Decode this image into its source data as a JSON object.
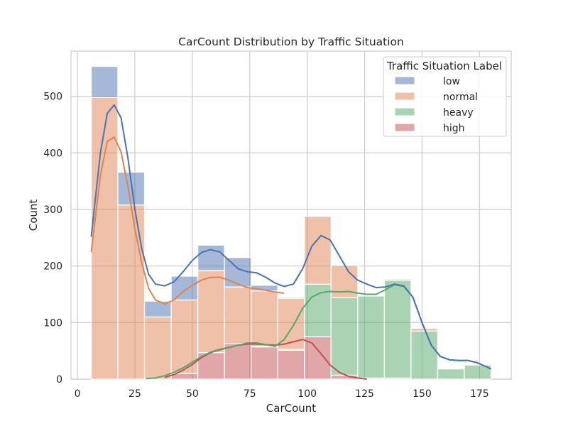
{
  "chart_data": {
    "type": "histogram",
    "title": "CarCount Distribution by Traffic Situation",
    "xlabel": "CarCount",
    "ylabel": "Count",
    "xlim": [
      -2.8,
      188.8
    ],
    "ylim": [
      0,
      580
    ],
    "xticks": [
      0,
      25,
      50,
      75,
      100,
      125,
      150,
      175
    ],
    "yticks": [
      0,
      100,
      200,
      300,
      400,
      500
    ],
    "grid": true,
    "stacked": true,
    "legend": {
      "title": "Traffic Situation Label",
      "placement": "top-right"
    },
    "bins": [
      6,
      17.6,
      29.2,
      40.8,
      52.4,
      64,
      75.6,
      87.2,
      98.8,
      110.4,
      122,
      133.6,
      145.2,
      156.8,
      168.4,
      180
    ],
    "series": [
      {
        "name": "low",
        "color": "#4c72b0",
        "values": [
          55,
          58,
          28,
          42,
          45,
          52,
          10,
          2,
          0,
          0,
          0,
          0,
          0,
          0,
          0
        ]
      },
      {
        "name": "normal",
        "color": "#dd8452",
        "values": [
          498,
          308,
          110,
          130,
          145,
          100,
          98,
          90,
          120,
          57,
          0,
          2,
          5,
          0,
          0
        ]
      },
      {
        "name": "heavy",
        "color": "#55a868",
        "values": [
          0,
          0,
          0,
          0,
          0,
          0,
          1,
          2,
          93,
          137,
          145,
          173,
          85,
          18,
          25
        ]
      },
      {
        "name": "high",
        "color": "#c44e52",
        "values": [
          0,
          0,
          0,
          10,
          47,
          63,
          57,
          51,
          75,
          7,
          2,
          2,
          0,
          0,
          0
        ]
      }
    ],
    "kde": [
      {
        "name": "low",
        "color": "#4c72b0",
        "points": [
          [
            6,
            252
          ],
          [
            10,
            400
          ],
          [
            13,
            470
          ],
          [
            16,
            485
          ],
          [
            19,
            462
          ],
          [
            22,
            390
          ],
          [
            25,
            300
          ],
          [
            28,
            230
          ],
          [
            31,
            185
          ],
          [
            34,
            168
          ],
          [
            38,
            165
          ],
          [
            42,
            172
          ],
          [
            46,
            190
          ],
          [
            50,
            210
          ],
          [
            54,
            224
          ],
          [
            58,
            229
          ],
          [
            62,
            225
          ],
          [
            66,
            210
          ],
          [
            70,
            195
          ],
          [
            74,
            190
          ],
          [
            78,
            188
          ],
          [
            82,
            180
          ],
          [
            86,
            170
          ],
          [
            90,
            164
          ],
          [
            94,
            168
          ],
          [
            98,
            195
          ],
          [
            102,
            235
          ],
          [
            106,
            254
          ],
          [
            110,
            246
          ],
          [
            114,
            218
          ],
          [
            118,
            190
          ],
          [
            122,
            175
          ],
          [
            126,
            168
          ],
          [
            130,
            162
          ],
          [
            134,
            163
          ],
          [
            138,
            168
          ],
          [
            142,
            165
          ],
          [
            146,
            145
          ],
          [
            150,
            100
          ],
          [
            154,
            60
          ],
          [
            158,
            40
          ],
          [
            162,
            34
          ],
          [
            166,
            33
          ],
          [
            170,
            33
          ],
          [
            174,
            29
          ],
          [
            178,
            22
          ],
          [
            180,
            18
          ]
        ]
      },
      {
        "name": "normal",
        "color": "#dd8452",
        "points": [
          [
            6,
            225
          ],
          [
            10,
            360
          ],
          [
            13,
            420
          ],
          [
            16,
            428
          ],
          [
            19,
            402
          ],
          [
            22,
            340
          ],
          [
            25,
            265
          ],
          [
            28,
            205
          ],
          [
            31,
            160
          ],
          [
            34,
            140
          ],
          [
            38,
            133
          ],
          [
            42,
            140
          ],
          [
            46,
            155
          ],
          [
            50,
            166
          ],
          [
            54,
            175
          ],
          [
            58,
            180
          ],
          [
            62,
            180
          ],
          [
            66,
            175
          ],
          [
            70,
            168
          ],
          [
            74,
            162
          ],
          [
            78,
            160
          ],
          [
            82,
            157
          ],
          [
            86,
            154
          ],
          [
            90,
            152
          ]
        ]
      },
      {
        "name": "heavy",
        "color": "#55a868",
        "points": [
          [
            30,
            1
          ],
          [
            34,
            2
          ],
          [
            38,
            6
          ],
          [
            42,
            12
          ],
          [
            46,
            20
          ],
          [
            50,
            30
          ],
          [
            54,
            40
          ],
          [
            58,
            48
          ],
          [
            62,
            53
          ],
          [
            66,
            56
          ],
          [
            70,
            60
          ],
          [
            74,
            64
          ],
          [
            78,
            64
          ],
          [
            82,
            61
          ],
          [
            86,
            58
          ],
          [
            90,
            70
          ],
          [
            94,
            95
          ],
          [
            98,
            125
          ],
          [
            102,
            145
          ],
          [
            106,
            153
          ],
          [
            110,
            155
          ],
          [
            114,
            154
          ],
          [
            118,
            155
          ],
          [
            122,
            152
          ],
          [
            126,
            150
          ],
          [
            130,
            150
          ],
          [
            134,
            158
          ],
          [
            138,
            167
          ],
          [
            142,
            164
          ],
          [
            146,
            145
          ],
          [
            150,
            100
          ],
          [
            154,
            60
          ],
          [
            158,
            40
          ],
          [
            162,
            34
          ],
          [
            166,
            33
          ],
          [
            170,
            33
          ],
          [
            174,
            29
          ],
          [
            178,
            22
          ],
          [
            180,
            18
          ]
        ]
      },
      {
        "name": "high",
        "color": "#c44e52",
        "points": [
          [
            38,
            3
          ],
          [
            42,
            8
          ],
          [
            46,
            16
          ],
          [
            50,
            26
          ],
          [
            54,
            38
          ],
          [
            58,
            47
          ],
          [
            62,
            52
          ],
          [
            66,
            56
          ],
          [
            70,
            60
          ],
          [
            74,
            62
          ],
          [
            78,
            62
          ],
          [
            82,
            61
          ],
          [
            86,
            60
          ],
          [
            90,
            62
          ],
          [
            94,
            66
          ],
          [
            98,
            70
          ],
          [
            102,
            64
          ],
          [
            106,
            45
          ],
          [
            110,
            25
          ],
          [
            114,
            12
          ],
          [
            118,
            5
          ],
          [
            122,
            2
          ],
          [
            126,
            0
          ]
        ]
      }
    ]
  }
}
